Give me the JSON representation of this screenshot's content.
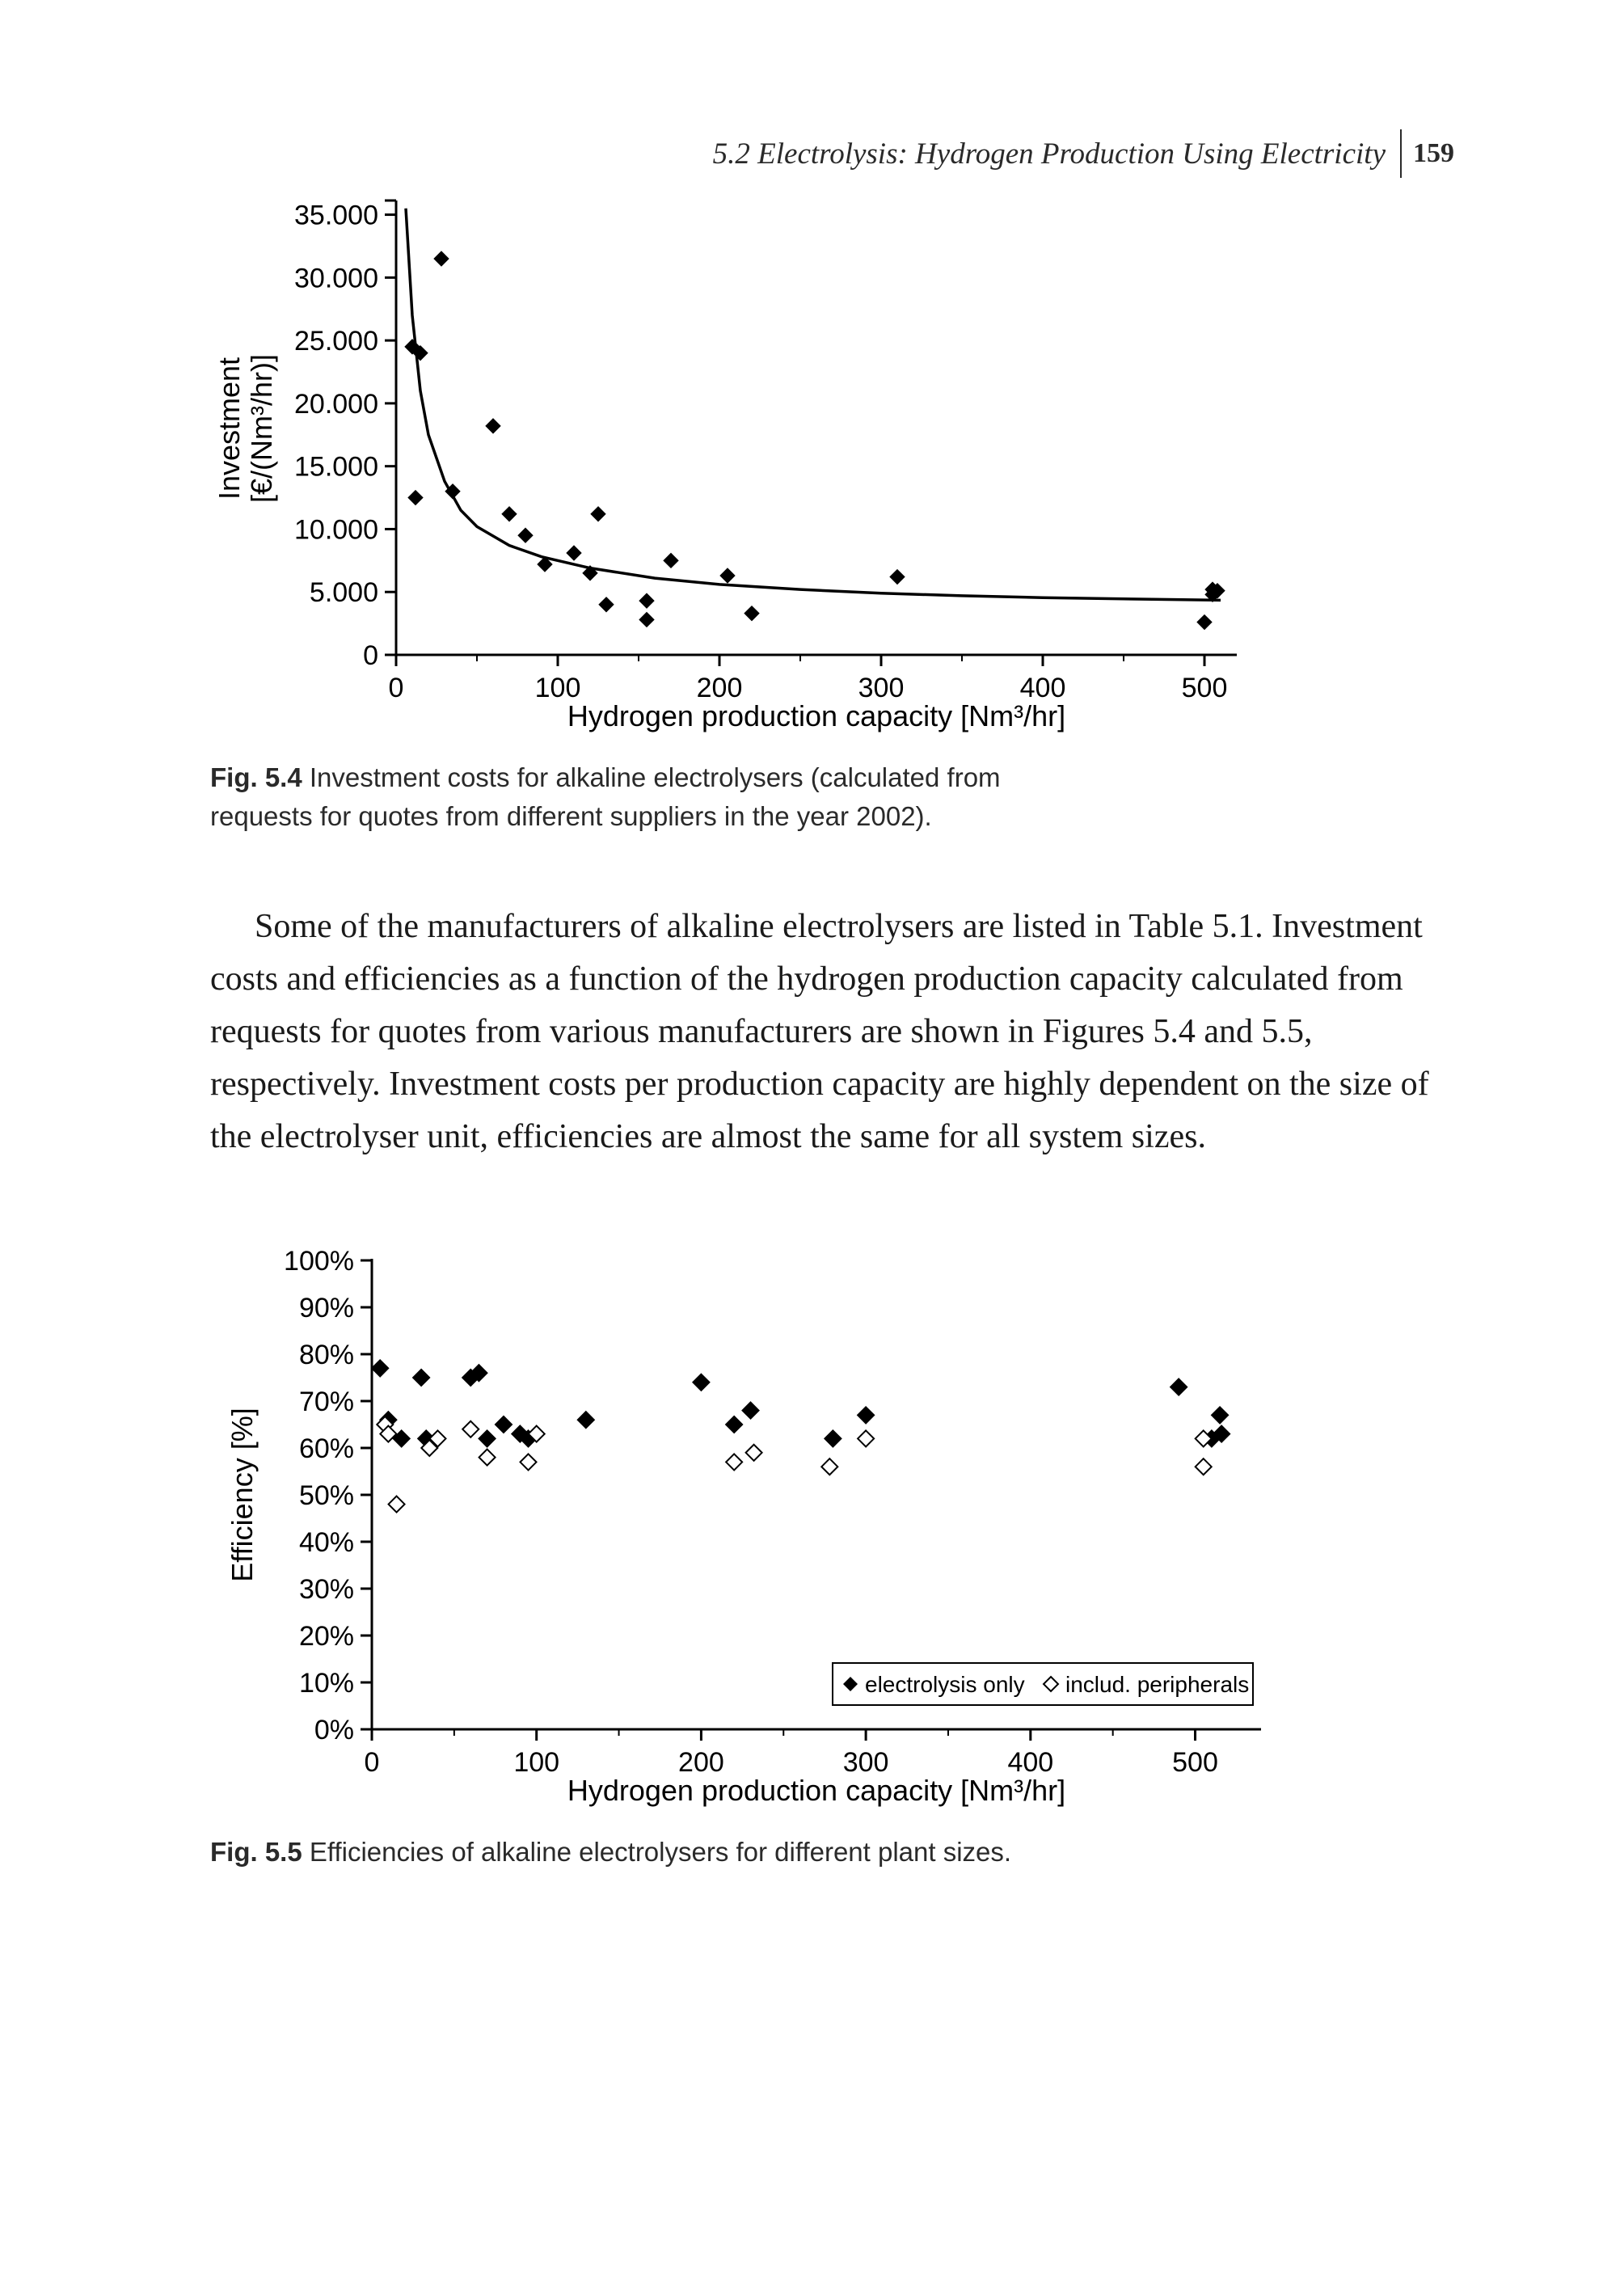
{
  "header": {
    "section": "5.2 Electrolysis: Hydrogen Production Using Electricity",
    "page_number": "159"
  },
  "fig54": {
    "type": "scatter_with_curve",
    "xlabel": "Hydrogen production capacity [Nm³/hr]",
    "ylabel_line1": "Investment",
    "ylabel_line2": "[€/(Nm³/hr)]",
    "xlim": [
      0,
      520
    ],
    "ylim": [
      0,
      36000
    ],
    "xtick_step": 100,
    "ytick_step": 5000,
    "ytick_labels": [
      "0",
      "5.000",
      "10.000",
      "15.000",
      "20.000",
      "25.000",
      "30.000",
      "35.000"
    ],
    "xtick_labels": [
      "0",
      "100",
      "200",
      "300",
      "400",
      "500"
    ],
    "label_fontsize": 36,
    "tick_fontsize": 34,
    "axis_color": "#000000",
    "axis_linewidth": 3,
    "marker_color": "#000000",
    "marker_size": 9,
    "curve_color": "#000000",
    "curve_linewidth": 3.5,
    "background_color": "#ffffff",
    "scatter_points": [
      [
        28,
        31500
      ],
      [
        10,
        24500
      ],
      [
        15,
        24000
      ],
      [
        12,
        12500
      ],
      [
        60,
        18200
      ],
      [
        35,
        13000
      ],
      [
        70,
        11200
      ],
      [
        80,
        9500
      ],
      [
        92,
        7200
      ],
      [
        110,
        8100
      ],
      [
        120,
        6500
      ],
      [
        125,
        11200
      ],
      [
        130,
        4000
      ],
      [
        155,
        4300
      ],
      [
        155,
        2800
      ],
      [
        170,
        7500
      ],
      [
        205,
        6300
      ],
      [
        220,
        3300
      ],
      [
        310,
        6200
      ],
      [
        500,
        2600
      ],
      [
        505,
        4800
      ],
      [
        505,
        5200
      ],
      [
        508,
        5100
      ]
    ],
    "curve": [
      [
        6,
        35500
      ],
      [
        10,
        27000
      ],
      [
        15,
        21000
      ],
      [
        20,
        17500
      ],
      [
        30,
        13800
      ],
      [
        40,
        11500
      ],
      [
        50,
        10200
      ],
      [
        70,
        8700
      ],
      [
        90,
        7800
      ],
      [
        120,
        6900
      ],
      [
        160,
        6100
      ],
      [
        200,
        5600
      ],
      [
        250,
        5200
      ],
      [
        300,
        4900
      ],
      [
        350,
        4700
      ],
      [
        400,
        4550
      ],
      [
        450,
        4450
      ],
      [
        510,
        4350
      ]
    ],
    "caption_label": "Fig. 5.4",
    "caption_text": "Investment costs for alkaline electrolysers (calculated from requests for quotes from different suppliers in the year 2002)."
  },
  "body_paragraph": "Some of the manufacturers of alkaline electrolysers are listed in Table 5.1. Investment costs and efficiencies as a function of the hydrogen production capacity calculated from requests for quotes from various manufacturers are shown in Figures 5.4 and 5.5, respectively. Investment costs per production capacity are highly dependent on the size of the electrolyser unit, efficiencies are almost the same for all system sizes.",
  "fig55": {
    "type": "scatter",
    "xlabel": "Hydrogen production capacity [Nm³/hr]",
    "ylabel": "Efficiency [%]",
    "xlim": [
      0,
      540
    ],
    "ylim": [
      0,
      100
    ],
    "xtick_step": 100,
    "ytick_step": 10,
    "ytick_labels": [
      "0%",
      "10%",
      "20%",
      "30%",
      "40%",
      "50%",
      "60%",
      "70%",
      "80%",
      "90%",
      "100%"
    ],
    "xtick_labels": [
      "0",
      "100",
      "200",
      "300",
      "400",
      "500"
    ],
    "label_fontsize": 36,
    "tick_fontsize": 34,
    "axis_color": "#000000",
    "axis_linewidth": 3,
    "background_color": "#ffffff",
    "series": [
      {
        "name": "electrolysis only",
        "marker": "filled_diamond",
        "marker_color": "#000000",
        "marker_size": 10,
        "legend_label": "electrolysis only",
        "points": [
          [
            5,
            77
          ],
          [
            10,
            66
          ],
          [
            18,
            62
          ],
          [
            30,
            75
          ],
          [
            33,
            62
          ],
          [
            60,
            75
          ],
          [
            65,
            76
          ],
          [
            70,
            62
          ],
          [
            80,
            65
          ],
          [
            90,
            63
          ],
          [
            95,
            62
          ],
          [
            130,
            66
          ],
          [
            200,
            74
          ],
          [
            220,
            65
          ],
          [
            230,
            68
          ],
          [
            280,
            62
          ],
          [
            300,
            67
          ],
          [
            490,
            73
          ],
          [
            510,
            62
          ],
          [
            515,
            67
          ],
          [
            516,
            63
          ]
        ]
      },
      {
        "name": "includ. peripherals",
        "marker": "open_diamond",
        "marker_color": "#000000",
        "marker_size": 10,
        "legend_label": "includ. peripherals",
        "points": [
          [
            8,
            65
          ],
          [
            10,
            63
          ],
          [
            15,
            48
          ],
          [
            35,
            60
          ],
          [
            40,
            62
          ],
          [
            60,
            64
          ],
          [
            70,
            58
          ],
          [
            95,
            57
          ],
          [
            100,
            63
          ],
          [
            220,
            57
          ],
          [
            232,
            59
          ],
          [
            278,
            56
          ],
          [
            300,
            62
          ],
          [
            505,
            62
          ],
          [
            505,
            56
          ]
        ]
      }
    ],
    "legend": {
      "position": "lower_right",
      "border_color": "#000000",
      "border_width": 2,
      "fontsize": 28
    },
    "caption_label": "Fig. 5.5",
    "caption_text": "Efficiencies of alkaline electrolysers for different plant sizes."
  }
}
